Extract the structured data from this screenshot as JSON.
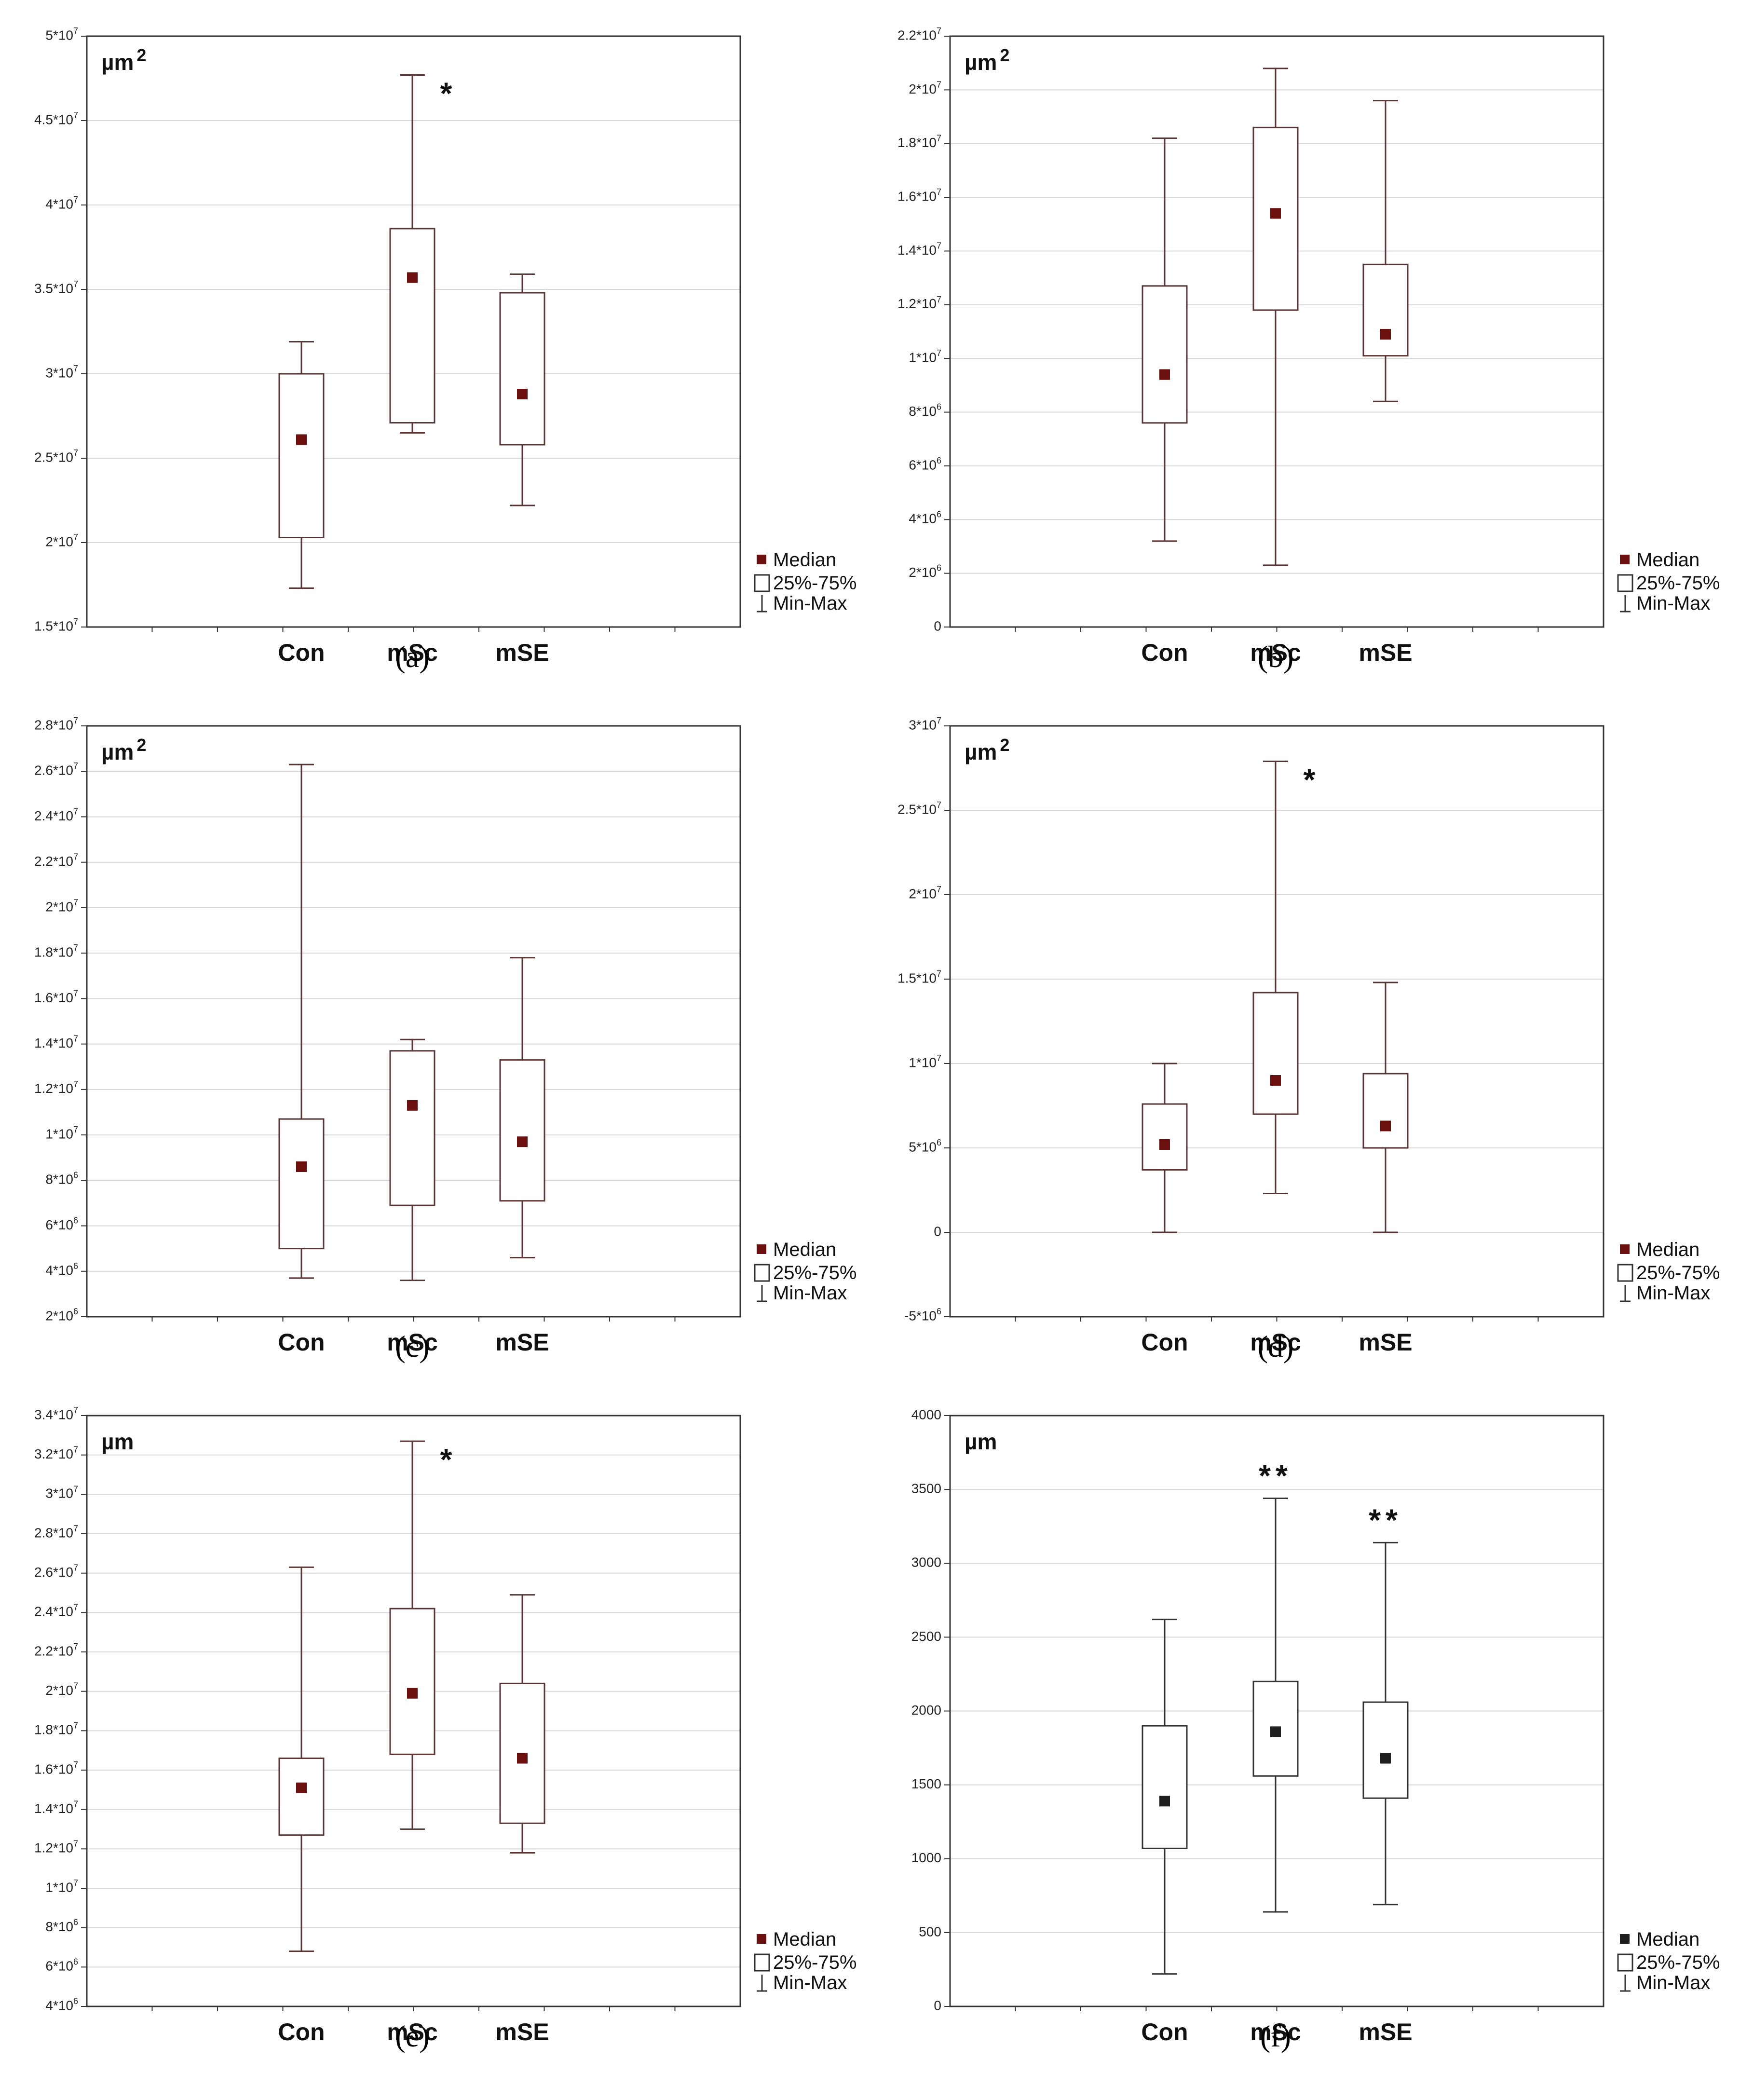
{
  "figure": {
    "legend": {
      "median": "Median",
      "box": "25%-75%",
      "whisker": "Min-Max"
    }
  },
  "chart_data": [
    {
      "panel": "(a)",
      "type": "box",
      "unit": "µm",
      "unit_superscript": "2",
      "categories": [
        "Con",
        "mSc",
        "mSE"
      ],
      "ylim": [
        15000000,
        50000000
      ],
      "yticks": [
        15000000,
        20000000,
        25000000,
        30000000,
        35000000,
        40000000,
        45000000,
        50000000
      ],
      "ytick_labels": [
        "1.5*10^7",
        "2*10^7",
        "2.5*10^7",
        "3*10^7",
        "3.5*10^7",
        "4*10^7",
        "4.5*10^7",
        "5*10^7"
      ],
      "boxes": [
        {
          "min": 17300000,
          "q1": 20300000,
          "median": 26100000,
          "q3": 30000000,
          "max": 31900000
        },
        {
          "min": 26500000,
          "q1": 27100000,
          "median": 35700000,
          "q3": 38600000,
          "max": 47700000
        },
        {
          "min": 22200000,
          "q1": 25800000,
          "median": 28800000,
          "q3": 34800000,
          "max": 35900000
        }
      ],
      "significance": [
        "",
        "*",
        ""
      ],
      "marker_color": "#6b0f0f",
      "line_color": "#5a3535"
    },
    {
      "panel": "(b)",
      "type": "box",
      "unit": "µm",
      "unit_superscript": "2",
      "categories": [
        "Con",
        "mSc",
        "mSE"
      ],
      "ylim": [
        0,
        22000000
      ],
      "yticks": [
        0,
        2000000,
        4000000,
        6000000,
        8000000,
        10000000,
        12000000,
        14000000,
        16000000,
        18000000,
        20000000,
        22000000
      ],
      "ytick_labels": [
        "0",
        "2*10^6",
        "4*10^6",
        "6*10^6",
        "8*10^6",
        "1*10^7",
        "1.2*10^7",
        "1.4*10^7",
        "1.6*10^7",
        "1.8*10^7",
        "2*10^7",
        "2.2*10^7"
      ],
      "boxes": [
        {
          "min": 3200000,
          "q1": 7600000,
          "median": 9400000,
          "q3": 12700000,
          "max": 18200000
        },
        {
          "min": 2300000,
          "q1": 11800000,
          "median": 15400000,
          "q3": 18600000,
          "max": 20800000
        },
        {
          "min": 8400000,
          "q1": 10100000,
          "median": 10900000,
          "q3": 13500000,
          "max": 19600000
        }
      ],
      "significance": [
        "",
        "",
        ""
      ],
      "marker_color": "#6b0f0f",
      "line_color": "#5a3535"
    },
    {
      "panel": "(c)",
      "type": "box",
      "unit": "µm",
      "unit_superscript": "2",
      "categories": [
        "Con",
        "mSc",
        "mSE"
      ],
      "ylim": [
        2000000,
        28000000
      ],
      "yticks": [
        2000000,
        4000000,
        6000000,
        8000000,
        10000000,
        12000000,
        14000000,
        16000000,
        18000000,
        20000000,
        22000000,
        24000000,
        26000000,
        28000000
      ],
      "ytick_labels": [
        "2*10^6",
        "4*10^6",
        "6*10^6",
        "8*10^6",
        "1*10^7",
        "1.2*10^7",
        "1.4*10^7",
        "1.6*10^7",
        "1.8*10^7",
        "2*10^7",
        "2.2*10^7",
        "2.4*10^7",
        "2.6*10^7",
        "2.8*10^7"
      ],
      "boxes": [
        {
          "min": 3700000,
          "q1": 5000000,
          "median": 8600000,
          "q3": 10700000,
          "max": 26300000
        },
        {
          "min": 3600000,
          "q1": 6900000,
          "median": 11300000,
          "q3": 13700000,
          "max": 14200000
        },
        {
          "min": 4600000,
          "q1": 7100000,
          "median": 9700000,
          "q3": 13300000,
          "max": 17800000
        }
      ],
      "significance": [
        "",
        "",
        ""
      ],
      "marker_color": "#6b0f0f",
      "line_color": "#5a3535"
    },
    {
      "panel": "(d)",
      "type": "box",
      "unit": "µm",
      "unit_superscript": "2",
      "categories": [
        "Con",
        "mSc",
        "mSE"
      ],
      "ylim": [
        -5000000,
        30000000
      ],
      "yticks": [
        -5000000,
        0,
        5000000,
        10000000,
        15000000,
        20000000,
        25000000,
        30000000
      ],
      "ytick_labels": [
        "-5*10^6",
        "0",
        "5*10^6",
        "1*10^7",
        "1.5*10^7",
        "2*10^7",
        "2.5*10^7",
        "3*10^7"
      ],
      "boxes": [
        {
          "min": 0,
          "q1": 3700000,
          "median": 5200000,
          "q3": 7600000,
          "max": 10000000
        },
        {
          "min": 2300000,
          "q1": 7000000,
          "median": 9000000,
          "q3": 14200000,
          "max": 27900000
        },
        {
          "min": 0,
          "q1": 5000000,
          "median": 6300000,
          "q3": 9400000,
          "max": 14800000
        }
      ],
      "significance": [
        "",
        "*",
        ""
      ],
      "marker_color": "#6b0f0f",
      "line_color": "#5a3535"
    },
    {
      "panel": "(e)",
      "type": "box",
      "unit": "µm",
      "unit_superscript": "",
      "categories": [
        "Con",
        "mSc",
        "mSE"
      ],
      "ylim": [
        4000000,
        34000000
      ],
      "yticks": [
        4000000,
        6000000,
        8000000,
        10000000,
        12000000,
        14000000,
        16000000,
        18000000,
        20000000,
        22000000,
        24000000,
        26000000,
        28000000,
        30000000,
        32000000,
        34000000
      ],
      "ytick_labels": [
        "4*10^6",
        "6*10^6",
        "8*10^6",
        "1*10^7",
        "1.2*10^7",
        "1.4*10^7",
        "1.6*10^7",
        "1.8*10^7",
        "2*10^7",
        "2.2*10^7",
        "2.4*10^7",
        "2.6*10^7",
        "2.8*10^7",
        "3*10^7",
        "3.2*10^7",
        "3.4*10^7"
      ],
      "boxes": [
        {
          "min": 6800000,
          "q1": 12700000,
          "median": 15100000,
          "q3": 16600000,
          "max": 26300000
        },
        {
          "min": 13000000,
          "q1": 16800000,
          "median": 19900000,
          "q3": 24200000,
          "max": 32700000
        },
        {
          "min": 11800000,
          "q1": 13300000,
          "median": 16600000,
          "q3": 20400000,
          "max": 24900000
        }
      ],
      "significance": [
        "",
        "*",
        ""
      ],
      "marker_color": "#6b0f0f",
      "line_color": "#5a3535"
    },
    {
      "panel": "(f)",
      "type": "box",
      "unit": "µm",
      "unit_superscript": "",
      "categories": [
        "Con",
        "mSc",
        "mSE"
      ],
      "ylim": [
        0,
        4000
      ],
      "yticks": [
        0,
        500,
        1000,
        1500,
        2000,
        2500,
        3000,
        3500,
        4000
      ],
      "ytick_labels": [
        "0",
        "500",
        "1000",
        "1500",
        "2000",
        "2500",
        "3000",
        "3500",
        "4000"
      ],
      "boxes": [
        {
          "min": 220,
          "q1": 1070,
          "median": 1390,
          "q3": 1900,
          "max": 2620
        },
        {
          "min": 640,
          "q1": 1560,
          "median": 1860,
          "q3": 2200,
          "max": 3440
        },
        {
          "min": 690,
          "q1": 1410,
          "median": 1680,
          "q3": 2060,
          "max": 3140
        }
      ],
      "significance": [
        "",
        "**",
        "**"
      ],
      "marker_color": "#1e1e1e",
      "line_color": "#333333"
    }
  ]
}
